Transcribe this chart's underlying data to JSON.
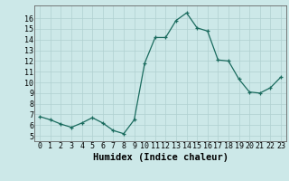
{
  "x": [
    0,
    1,
    2,
    3,
    4,
    5,
    6,
    7,
    8,
    9,
    10,
    11,
    12,
    13,
    14,
    15,
    16,
    17,
    18,
    19,
    20,
    21,
    22,
    23
  ],
  "y": [
    6.8,
    6.5,
    6.1,
    5.8,
    6.2,
    6.7,
    6.2,
    5.5,
    5.2,
    6.5,
    11.8,
    14.2,
    14.2,
    15.8,
    16.5,
    15.1,
    14.8,
    12.1,
    12.0,
    10.3,
    9.1,
    9.0,
    9.5,
    10.5
  ],
  "line_color": "#1a6b5e",
  "marker": "+",
  "marker_size": 3.5,
  "bg_color": "#cce8e8",
  "grid_color": "#b0d0d0",
  "xlabel": "Humidex (Indice chaleur)",
  "ylabel": "",
  "xlim": [
    -0.5,
    23.5
  ],
  "ylim": [
    4.5,
    17.2
  ],
  "xticks": [
    0,
    1,
    2,
    3,
    4,
    5,
    6,
    7,
    8,
    9,
    10,
    11,
    12,
    13,
    14,
    15,
    16,
    17,
    18,
    19,
    20,
    21,
    22,
    23
  ],
  "yticks": [
    5,
    6,
    7,
    8,
    9,
    10,
    11,
    12,
    13,
    14,
    15,
    16
  ],
  "tick_fontsize": 6.0,
  "xlabel_fontsize": 7.5
}
